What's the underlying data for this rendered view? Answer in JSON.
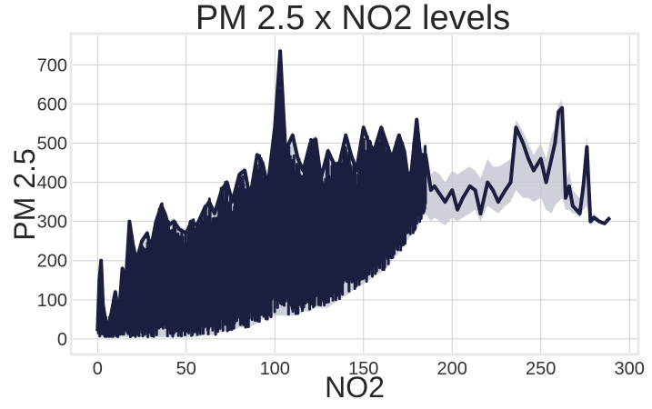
{
  "chart_data": {
    "type": "line",
    "title": "PM 2.5 x NO2 levels",
    "xlabel": "NO2",
    "ylabel": "PM 2.5",
    "xlim": [
      -14,
      304
    ],
    "ylim": [
      -35,
      775
    ],
    "xticks": [
      0,
      50,
      100,
      150,
      200,
      250,
      300
    ],
    "yticks": [
      0,
      100,
      200,
      300,
      400,
      500,
      600,
      700
    ],
    "xtick_labels": [
      "0",
      "50",
      "100",
      "150",
      "200",
      "250",
      "300"
    ],
    "ytick_labels": [
      "0",
      "100",
      "200",
      "300",
      "400",
      "500",
      "600",
      "700"
    ],
    "grid": true,
    "line_color": "#1b1e3f",
    "band_color": "#c7c9d3",
    "series": [
      {
        "x": [
          0,
          1,
          2,
          3,
          4,
          5,
          6,
          8,
          10,
          12,
          14,
          16,
          18,
          20,
          22,
          25,
          28,
          30,
          33,
          36,
          38,
          40,
          43,
          46,
          50,
          53,
          56,
          60,
          63,
          66,
          70,
          73,
          76,
          80,
          83,
          86,
          90,
          93,
          96,
          100,
          103,
          106,
          110,
          113,
          116,
          120,
          123,
          126,
          130,
          133,
          136,
          140,
          143,
          146,
          150,
          153,
          156,
          160,
          163,
          166,
          170,
          173,
          176,
          180,
          182,
          185,
          188,
          190,
          193,
          196,
          200,
          203,
          206,
          210,
          213,
          216,
          220,
          223,
          226,
          230,
          233,
          236,
          240,
          243,
          246,
          250,
          253,
          256,
          258,
          260,
          262,
          264,
          266,
          268,
          270,
          272,
          274,
          276,
          278,
          280,
          283,
          286,
          289
        ],
        "y": [
          20,
          150,
          200,
          90,
          60,
          40,
          30,
          70,
          120,
          60,
          180,
          150,
          300,
          240,
          200,
          250,
          270,
          230,
          300,
          340,
          320,
          290,
          300,
          280,
          270,
          300,
          290,
          330,
          350,
          320,
          380,
          400,
          350,
          420,
          430,
          360,
          470,
          450,
          390,
          540,
          735,
          480,
          520,
          460,
          430,
          500,
          510,
          410,
          480,
          450,
          440,
          520,
          470,
          430,
          540,
          500,
          480,
          540,
          500,
          460,
          520,
          480,
          380,
          560,
          470,
          470,
          380,
          390,
          370,
          350,
          380,
          330,
          360,
          390,
          380,
          320,
          400,
          380,
          350,
          380,
          400,
          540,
          500,
          460,
          430,
          460,
          400,
          460,
          500,
          580,
          590,
          360,
          390,
          340,
          330,
          320,
          390,
          490,
          300,
          310,
          300,
          295,
          310
        ],
        "lower": [
          20,
          5,
          5,
          5,
          5,
          5,
          5,
          5,
          5,
          5,
          5,
          5,
          5,
          5,
          5,
          5,
          5,
          5,
          5,
          5,
          5,
          5,
          5,
          5,
          5,
          5,
          5,
          10,
          10,
          10,
          20,
          20,
          20,
          30,
          30,
          30,
          40,
          50,
          50,
          60,
          60,
          60,
          60,
          60,
          70,
          70,
          80,
          80,
          80,
          90,
          100,
          110,
          120,
          130,
          140,
          150,
          160,
          170,
          180,
          200,
          220,
          240,
          260,
          280,
          300,
          320,
          300,
          310,
          300,
          290,
          310,
          300,
          310,
          320,
          330,
          300,
          340,
          330,
          320,
          340,
          350,
          380,
          360,
          360,
          350,
          360,
          330,
          320,
          340,
          350,
          360,
          330,
          330,
          320,
          320,
          310,
          330,
          340,
          290,
          300,
          295,
          290,
          305
        ],
        "upper": [
          25,
          160,
          205,
          95,
          70,
          50,
          40,
          80,
          130,
          70,
          190,
          160,
          310,
          250,
          210,
          260,
          280,
          240,
          310,
          350,
          330,
          300,
          310,
          290,
          280,
          310,
          300,
          340,
          360,
          330,
          390,
          410,
          360,
          430,
          440,
          370,
          480,
          460,
          400,
          550,
          740,
          490,
          530,
          470,
          440,
          510,
          520,
          420,
          490,
          460,
          450,
          530,
          480,
          440,
          550,
          510,
          490,
          550,
          510,
          470,
          530,
          490,
          420,
          570,
          480,
          500,
          420,
          430,
          420,
          400,
          430,
          420,
          430,
          440,
          430,
          410,
          460,
          440,
          440,
          450,
          460,
          560,
          530,
          500,
          470,
          500,
          460,
          520,
          540,
          600,
          610,
          400,
          430,
          380,
          370,
          360,
          430,
          520,
          310,
          320,
          305,
          300,
          315
        ],
        "dense_until": 185
      }
    ]
  }
}
